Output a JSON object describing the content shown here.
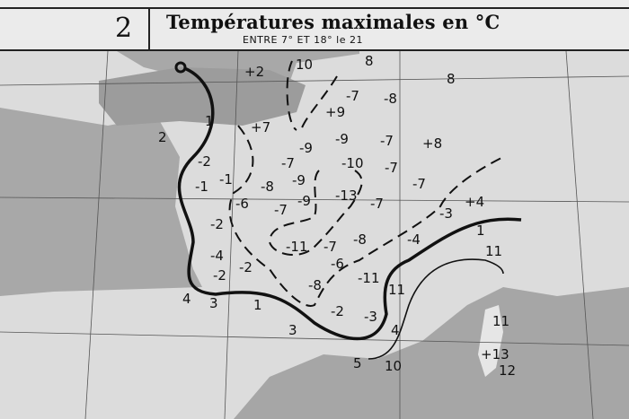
{
  "header": {
    "map_number": "2",
    "title": "Températures maximales en °C",
    "subtitle": "ENTRE 7° ET 18° le 21"
  },
  "map": {
    "isotherm_labels": [
      "+2",
      "10",
      "8",
      "8",
      "-7",
      "-8",
      "+9",
      "1",
      "+7",
      "2",
      "-9",
      "-9",
      "-7",
      "+8",
      "-2",
      "-7",
      "-10",
      "-7",
      "-1",
      "-1",
      "-8",
      "-9",
      "-7",
      "-6",
      "-7",
      "-9",
      "-13",
      "-7",
      "+4",
      "-3",
      "-2",
      "-11",
      "-7",
      "-8",
      "-4",
      "1",
      "11",
      "-4",
      "-2",
      "-6",
      "-2",
      "-11",
      "-8",
      "11",
      "4",
      "3",
      "1",
      "-2",
      "-3",
      "11",
      "3",
      "4",
      "+13",
      "5",
      "10",
      "12"
    ],
    "colors": {
      "sea": "#9a9a9a",
      "land": "#dcdcdc",
      "ink": "#111111"
    }
  }
}
